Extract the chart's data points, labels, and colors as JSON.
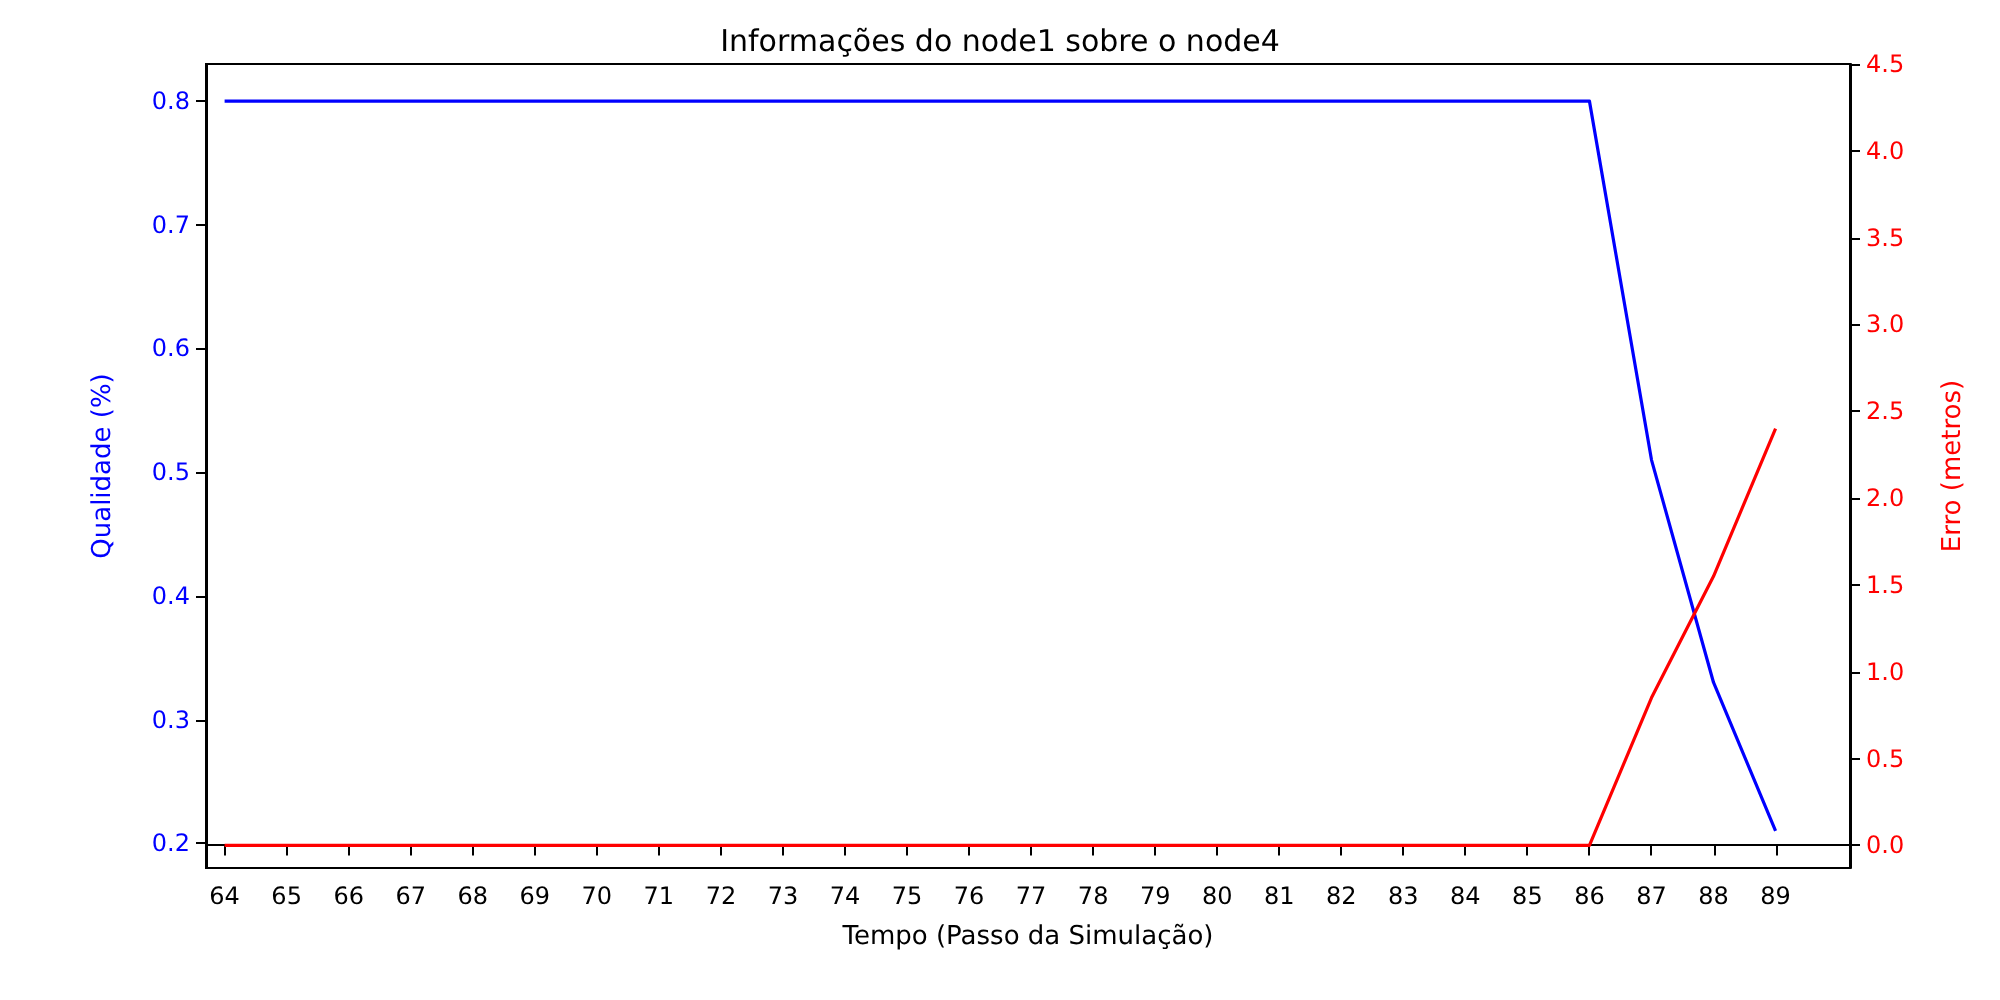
{
  "chart_data": {
    "type": "line",
    "title": "Informações do node1 sobre o node4",
    "xlabel": "Tempo (Passo da Simulação)",
    "ylabel": "Qualidade (%)",
    "y2label": "Erro (metros)",
    "x": [
      64,
      65,
      66,
      67,
      68,
      69,
      70,
      71,
      72,
      73,
      74,
      75,
      76,
      77,
      78,
      79,
      80,
      81,
      82,
      83,
      84,
      85,
      86,
      87,
      88,
      89
    ],
    "series": [
      {
        "color": "#0000ff",
        "values": [
          0.8,
          0.8,
          0.8,
          0.8,
          0.8,
          0.8,
          0.8,
          0.8,
          0.8,
          0.8,
          0.8,
          0.8,
          0.8,
          0.8,
          0.8,
          0.8,
          0.8,
          0.8,
          0.8,
          0.8,
          0.8,
          0.8,
          0.8,
          0.51,
          0.33,
          0.21
        ]
      },
      {
        "color": "#ff0000",
        "axis": "y2",
        "values": [
          0,
          0,
          0,
          0,
          0,
          0,
          0,
          0,
          0,
          0,
          0,
          0,
          0,
          0,
          0,
          0,
          0,
          0,
          0,
          0,
          0,
          0,
          0,
          0.85,
          1.55,
          2.4
        ]
      }
    ],
    "xlim": [
      63.7,
      90.2
    ],
    "xticks": [
      64,
      65,
      66,
      67,
      68,
      69,
      70,
      71,
      72,
      73,
      74,
      75,
      76,
      77,
      78,
      79,
      80,
      81,
      82,
      83,
      84,
      85,
      86,
      87,
      88,
      89
    ],
    "ylim": [
      0.18,
      0.83
    ],
    "yticks": [
      {
        "value": 0.2,
        "label": "0.2"
      },
      {
        "value": 0.3,
        "label": "0.3"
      },
      {
        "value": 0.4,
        "label": "0.4"
      },
      {
        "value": 0.5,
        "label": "0.5"
      },
      {
        "value": 0.6,
        "label": "0.6"
      },
      {
        "value": 0.7,
        "label": "0.7"
      },
      {
        "value": 0.8,
        "label": "0.8"
      }
    ],
    "y2lim": [
      -0.13,
      4.5
    ],
    "y2ticks": [
      {
        "value": 0,
        "label": "0.0"
      },
      {
        "value": 0.5,
        "label": "0.5"
      },
      {
        "value": 1,
        "label": "1.0"
      },
      {
        "value": 1.5,
        "label": "1.5"
      },
      {
        "value": 2,
        "label": "2.0"
      },
      {
        "value": 2.5,
        "label": "2.5"
      },
      {
        "value": 3,
        "label": "3.0"
      },
      {
        "value": 3.5,
        "label": "3.5"
      },
      {
        "value": 4,
        "label": "4.0"
      },
      {
        "value": 4.5,
        "label": "4.5"
      }
    ],
    "marker": "none",
    "line_style": "solid"
  }
}
